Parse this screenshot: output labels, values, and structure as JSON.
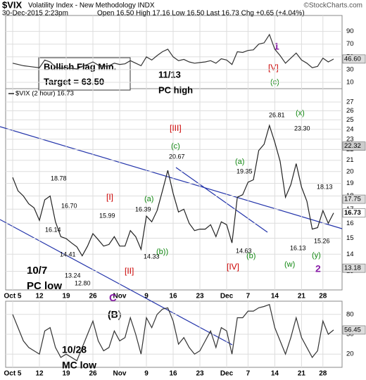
{
  "header": {
    "symbol": "$VIX",
    "title": "Volatility Index - New Methodology INDX",
    "date": "30-Dec-2015 2:23pm",
    "quote": "Open 16.50 High 17.16 Low 16.50 Last 16.73 Chg +0.65 (+4.04%)",
    "watermark": "©StockCharts.com"
  },
  "chart_data": [
    {
      "type": "line",
      "yscale": "log",
      "grid": true,
      "categories": [
        "Oct 5",
        null,
        null,
        null,
        null,
        "12",
        null,
        null,
        null,
        null,
        "19",
        null,
        null,
        null,
        null,
        "26",
        null,
        null,
        null,
        null,
        "Nov",
        null,
        null,
        null,
        null,
        "9",
        null,
        null,
        null,
        null,
        "16",
        null,
        null,
        null,
        null,
        "23",
        null,
        null,
        null,
        null,
        "Dec",
        null,
        null,
        null,
        "7",
        null,
        null,
        null,
        null,
        "14",
        null,
        null,
        null,
        null,
        "21",
        null,
        null,
        null,
        "28",
        null,
        null
      ],
      "series": [
        {
          "name": "$VIX (2 hour) 16.73",
          "color": "#222222",
          "values": [
            19.5,
            18.4,
            18.0,
            17.4,
            17.1,
            16.2,
            17.7,
            18.0,
            16.1,
            15.1,
            14.98,
            14.7,
            14.45,
            13.9,
            14.5,
            15.3,
            14.9,
            14.5,
            14.6,
            15.1,
            14.5,
            14.5,
            15.5,
            15.1,
            14.3,
            16.5,
            16.1,
            16.9,
            18.4,
            20.1,
            18.2,
            16.8,
            17.0,
            16.0,
            15.5,
            15.6,
            15.6,
            15.9,
            15.1,
            16.1,
            15.9,
            14.7,
            17.9,
            18.1,
            19.1,
            19.3,
            21.9,
            22.5,
            24.4,
            22.7,
            20.9,
            17.9,
            18.9,
            20.7,
            18.7,
            17.6,
            15.6,
            15.7,
            16.9,
            16.0,
            16.73
          ]
        }
      ],
      "ylim": [
        12,
        28.6
      ],
      "yticks": [
        13,
        14,
        15,
        16,
        17,
        18,
        19,
        20,
        21,
        22,
        23,
        24,
        25,
        26,
        27
      ],
      "levels": [
        22.32,
        17.75,
        16.73,
        13.18
      ],
      "annotations": [
        "Bullish Flag Min.",
        "Target = 63.50",
        "11/13",
        "PC high",
        "10/7",
        "PC low",
        "[V]",
        "1",
        "(c)",
        "26.81",
        "(x)",
        "23.30",
        "[III]",
        "(c)",
        "20.67",
        "(a)",
        "19.35",
        "(a)",
        "[I]",
        "18.78",
        "16.70",
        "15.99",
        "16.39",
        "16.14",
        "14.41",
        "13.24",
        "12.80",
        "14.33",
        "(b))",
        "[II]",
        "C",
        "(B)",
        "14.63",
        "(b)",
        "[IV]",
        "16.13",
        "(w)",
        "18.13",
        "15.26",
        "(y)",
        "2"
      ]
    },
    {
      "type": "line",
      "series": [
        {
          "color": "#333333",
          "values": [
            40,
            38,
            36,
            35,
            34,
            33,
            45,
            42,
            34,
            32,
            33,
            32,
            31,
            35,
            38,
            42,
            37,
            35,
            36,
            40,
            38,
            39,
            44,
            40,
            36,
            50,
            45,
            52,
            58,
            62,
            50,
            44,
            46,
            42,
            40,
            41,
            42,
            44,
            40,
            47,
            45,
            38,
            58,
            57,
            60,
            61,
            70,
            72,
            85,
            62,
            52,
            40,
            48,
            56,
            45,
            40,
            33,
            35,
            48,
            42,
            46.6
          ]
        }
      ],
      "ylim": [
        0,
        115
      ],
      "yticks": [
        10,
        30,
        50,
        70,
        90
      ],
      "levels": [
        {
          "value": 46.6,
          "label": "46.60"
        }
      ]
    },
    {
      "type": "line",
      "categories": [
        "Oct 5",
        null,
        null,
        null,
        null,
        "12",
        null,
        null,
        null,
        null,
        "19",
        null,
        null,
        null,
        null,
        "26",
        null,
        null,
        null,
        null,
        "Nov",
        null,
        null,
        null,
        null,
        "9",
        null,
        null,
        null,
        null,
        "16",
        null,
        null,
        null,
        null,
        "23",
        null,
        null,
        null,
        null,
        "Dec",
        null,
        null,
        null,
        "7",
        null,
        null,
        null,
        null,
        "14",
        null,
        null,
        null,
        null,
        "21",
        null,
        null,
        null,
        "28",
        null,
        null
      ],
      "series": [
        {
          "color": "#333333",
          "values": [
            80,
            60,
            40,
            30,
            25,
            20,
            55,
            60,
            30,
            15,
            20,
            15,
            10,
            30,
            50,
            70,
            40,
            25,
            30,
            55,
            40,
            45,
            75,
            50,
            20,
            75,
            60,
            80,
            88,
            90,
            70,
            35,
            45,
            30,
            20,
            25,
            40,
            55,
            30,
            60,
            55,
            20,
            75,
            75,
            85,
            85,
            90,
            92,
            95,
            60,
            40,
            20,
            45,
            75,
            45,
            30,
            15,
            25,
            70,
            50,
            56.45
          ]
        }
      ],
      "ylim": [
        0,
        100
      ],
      "yticks": [
        20,
        50,
        80
      ],
      "levels": [
        56.45
      ],
      "annotations": [
        "10/28",
        "MC low"
      ]
    }
  ]
}
